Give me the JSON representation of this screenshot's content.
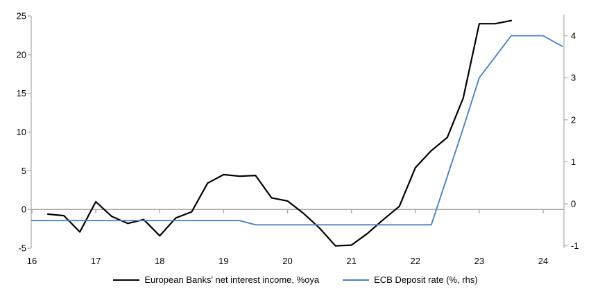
{
  "chart_data": {
    "type": "line",
    "title": "",
    "xlabel": "",
    "ylabel_left": "",
    "ylabel_right": "",
    "grid": "zero-line-only",
    "legend_position": "bottom-center",
    "x_axis": {
      "ticks": [
        "16",
        "17",
        "18",
        "19",
        "20",
        "21",
        "22",
        "23",
        "24"
      ],
      "range": [
        16,
        24.33
      ]
    },
    "left_axis": {
      "ticks": [
        "-5",
        "0",
        "5",
        "10",
        "15",
        "20",
        "25"
      ],
      "range": [
        -5,
        25
      ]
    },
    "right_axis": {
      "ticks": [
        "-1",
        "0",
        "1",
        "2",
        "3",
        "4"
      ],
      "range": [
        -1.05,
        4.5
      ]
    },
    "series": [
      {
        "name": "European Banks' net interest income, %oya",
        "axis": "left",
        "color": "#000000",
        "points": [
          [
            16.25,
            -0.6
          ],
          [
            16.5,
            -0.8
          ],
          [
            16.75,
            -2.9
          ],
          [
            17.0,
            1.0
          ],
          [
            17.25,
            -0.9
          ],
          [
            17.5,
            -1.8
          ],
          [
            17.75,
            -1.3
          ],
          [
            18.0,
            -3.4
          ],
          [
            18.25,
            -1.1
          ],
          [
            18.5,
            -0.3
          ],
          [
            18.75,
            3.4
          ],
          [
            19.0,
            4.5
          ],
          [
            19.25,
            4.3
          ],
          [
            19.5,
            4.4
          ],
          [
            19.75,
            1.5
          ],
          [
            20.0,
            1.1
          ],
          [
            20.25,
            -0.5
          ],
          [
            20.5,
            -2.4
          ],
          [
            20.75,
            -4.7
          ],
          [
            21.0,
            -4.6
          ],
          [
            21.25,
            -3.1
          ],
          [
            21.5,
            -1.3
          ],
          [
            21.75,
            0.4
          ],
          [
            22.0,
            5.4
          ],
          [
            22.25,
            7.6
          ],
          [
            22.5,
            9.3
          ],
          [
            22.75,
            14.4
          ],
          [
            23.0,
            24.0
          ],
          [
            23.25,
            24.0
          ],
          [
            23.5,
            24.4
          ]
        ]
      },
      {
        "name": "ECB Deposit rate (%, rhs)",
        "axis": "right",
        "color": "#4f81bd",
        "points": [
          [
            16.0,
            -0.4
          ],
          [
            19.25,
            -0.4
          ],
          [
            19.5,
            -0.5
          ],
          [
            22.25,
            -0.5
          ],
          [
            22.5,
            0.65
          ],
          [
            22.75,
            1.8
          ],
          [
            23.0,
            3.0
          ],
          [
            23.25,
            3.5
          ],
          [
            23.5,
            4.0
          ],
          [
            24.0,
            4.0
          ],
          [
            24.3,
            3.75
          ]
        ]
      }
    ]
  },
  "colors": {
    "background": "#ffffff",
    "axis_line": "#b3b3b3",
    "zero_line": "#a6a6a6",
    "tick_text": "#000000",
    "nii_series": "#000000",
    "deposit_rate_series": "#4f81bd"
  }
}
